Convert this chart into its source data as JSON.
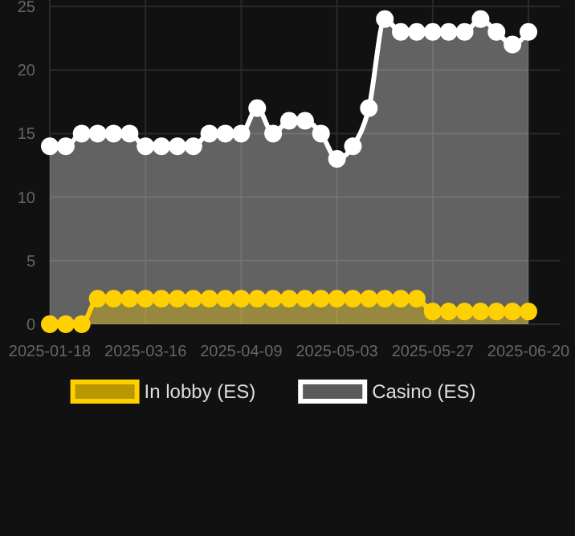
{
  "chart_data": {
    "type": "area",
    "categories": [
      "2025-01-18",
      null,
      null,
      null,
      null,
      null,
      "2025-03-16",
      null,
      null,
      null,
      null,
      null,
      "2025-04-09",
      null,
      null,
      null,
      null,
      null,
      "2025-05-03",
      null,
      null,
      null,
      null,
      null,
      "2025-05-27",
      null,
      null,
      null,
      null,
      null,
      "2025-06-20"
    ],
    "series": [
      {
        "name": "In lobby (ES)",
        "color": "#ffd000",
        "values": [
          0,
          0,
          0,
          2,
          2,
          2,
          2,
          2,
          2,
          2,
          2,
          2,
          2,
          2,
          2,
          2,
          2,
          2,
          2,
          2,
          2,
          2,
          2,
          2,
          1,
          1,
          1,
          1,
          1,
          1,
          1
        ]
      },
      {
        "name": "Casino (ES)",
        "color": "#ffffff",
        "values": [
          14,
          14,
          15,
          15,
          15,
          15,
          14,
          14,
          14,
          14,
          15,
          15,
          15,
          17,
          15,
          16,
          16,
          15,
          13,
          14,
          17,
          24,
          23,
          23,
          23,
          23,
          23,
          24,
          23,
          22,
          23
        ]
      }
    ],
    "ylim": [
      0,
      25
    ],
    "yticks": [
      0,
      5,
      10,
      15,
      20,
      25
    ],
    "grid": true,
    "legend": "bottom",
    "marker": "circle"
  }
}
